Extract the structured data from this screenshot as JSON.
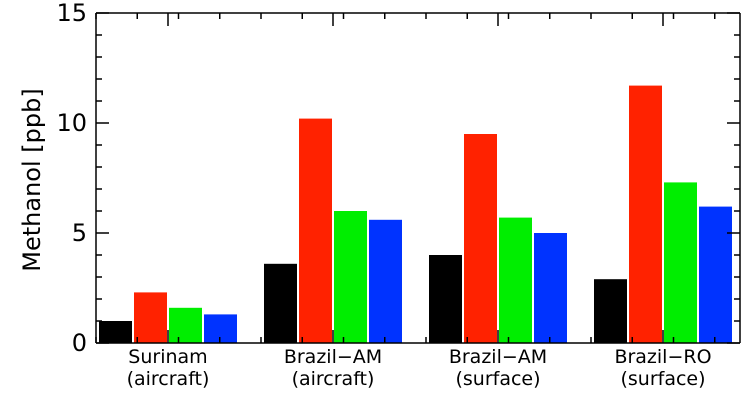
{
  "chart_data": {
    "type": "bar",
    "ylabel": "Methanol [ppb]",
    "ylim": [
      0,
      15
    ],
    "yticks": [
      0,
      5,
      10,
      15
    ],
    "categories": [
      [
        "Surinam",
        "(aircraft)"
      ],
      [
        "Brazil−AM",
        "(aircraft)"
      ],
      [
        "Brazil−AM",
        "(surface)"
      ],
      [
        "Brazil−RO",
        "(surface)"
      ]
    ],
    "series": [
      {
        "color": "#000000",
        "values": [
          1.0,
          3.6,
          4.0,
          2.9
        ]
      },
      {
        "color": "#ff2200",
        "values": [
          2.3,
          10.2,
          9.5,
          11.7
        ]
      },
      {
        "color": "#00ee00",
        "values": [
          1.6,
          6.0,
          5.7,
          7.3
        ]
      },
      {
        "color": "#0033ff",
        "values": [
          1.3,
          5.6,
          5.0,
          6.2
        ]
      }
    ],
    "grid": false,
    "legend": "none"
  }
}
